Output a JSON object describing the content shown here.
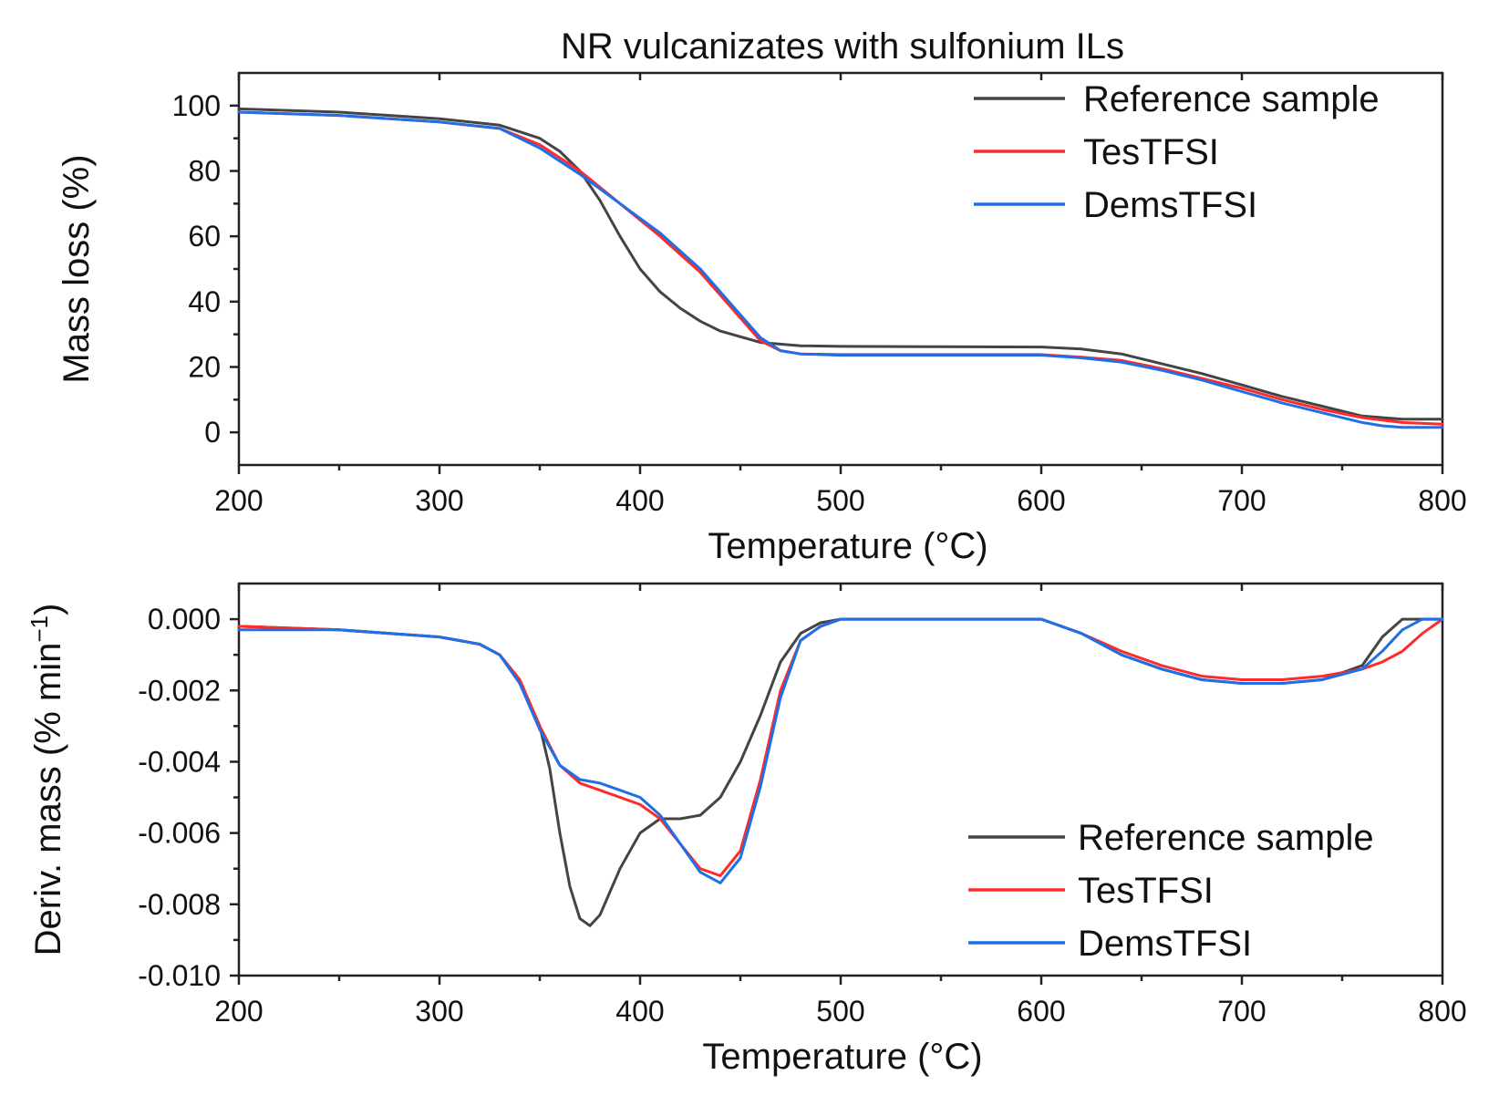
{
  "title": "NR vulcanizates with sulfonium ILs",
  "colors": {
    "reference": "#444444",
    "testfsi": "#ff2a2a",
    "demstfsi": "#1f6fe6"
  },
  "chart_data": [
    {
      "type": "line",
      "xlabel": "Temperature (°C)",
      "ylabel": "Mass loss (%)",
      "xlim": [
        200,
        800
      ],
      "ylim": [
        -10,
        110
      ],
      "xticks": [
        200,
        300,
        400,
        500,
        600,
        700,
        800
      ],
      "yticks": [
        0,
        20,
        40,
        60,
        80,
        100
      ],
      "ytick_labels": [
        "0",
        "20",
        "40",
        "60",
        "80",
        "100"
      ],
      "legend_position": "top-right",
      "series": [
        {
          "name": "Reference sample",
          "color": "#444444",
          "x": [
            200,
            250,
            300,
            330,
            350,
            360,
            370,
            380,
            390,
            400,
            410,
            420,
            430,
            440,
            460,
            480,
            500,
            550,
            600,
            620,
            640,
            660,
            680,
            700,
            720,
            740,
            760,
            780,
            800
          ],
          "y": [
            99,
            98,
            96,
            94,
            90,
            86,
            80,
            71,
            60,
            50,
            43,
            38,
            34,
            31,
            27.5,
            26.5,
            26.3,
            26.2,
            26.1,
            25.5,
            24,
            21,
            18,
            14.5,
            11,
            8,
            5,
            4,
            4
          ]
        },
        {
          "name": "TesTFSI",
          "color": "#ff2a2a",
          "x": [
            200,
            250,
            300,
            330,
            350,
            370,
            390,
            410,
            430,
            450,
            460,
            470,
            480,
            500,
            550,
            600,
            620,
            640,
            660,
            680,
            700,
            720,
            740,
            760,
            780,
            800
          ],
          "y": [
            98,
            97,
            95,
            93,
            88,
            80,
            70,
            60,
            49,
            35,
            28,
            25,
            24,
            23.8,
            23.8,
            23.8,
            23,
            22,
            19.5,
            16.5,
            13.5,
            10,
            7,
            4.5,
            3,
            2.5
          ]
        },
        {
          "name": "DemsTFSI",
          "color": "#1f6fe6",
          "x": [
            200,
            250,
            300,
            330,
            350,
            370,
            390,
            410,
            430,
            450,
            460,
            470,
            480,
            500,
            550,
            600,
            620,
            640,
            660,
            680,
            700,
            720,
            740,
            760,
            770,
            780,
            800
          ],
          "y": [
            98,
            97,
            95,
            93,
            87,
            79,
            70,
            61,
            50,
            36,
            29,
            25,
            24,
            23.6,
            23.6,
            23.6,
            22.8,
            21.5,
            19,
            16,
            12.5,
            9,
            6,
            3,
            2,
            1.5,
            1.5
          ]
        }
      ]
    },
    {
      "type": "line",
      "xlabel": "Temperature (°C)",
      "ylabel": "Deriv. mass (% min",
      "ylabel_superscript": "−1",
      "ylabel_close": ")",
      "xlim": [
        200,
        800
      ],
      "ylim": [
        -0.01,
        0.001
      ],
      "xticks": [
        200,
        300,
        400,
        500,
        600,
        700,
        800
      ],
      "yticks": [
        0,
        -0.002,
        -0.004,
        -0.006,
        -0.008,
        -0.01
      ],
      "ytick_labels": [
        "0.000",
        "-0.002",
        "-0.004",
        "-0.006",
        "-0.008",
        "-0.010"
      ],
      "legend_position": "bottom-right",
      "series": [
        {
          "name": "Reference sample",
          "color": "#444444",
          "x": [
            200,
            250,
            300,
            320,
            330,
            340,
            350,
            355,
            360,
            365,
            370,
            375,
            380,
            390,
            400,
            410,
            420,
            430,
            440,
            450,
            460,
            470,
            480,
            490,
            500,
            550,
            600,
            620,
            640,
            660,
            680,
            700,
            720,
            740,
            760,
            770,
            780,
            800
          ],
          "y": [
            -0.0002,
            -0.0003,
            -0.0005,
            -0.0007,
            -0.001,
            -0.0017,
            -0.003,
            -0.0042,
            -0.006,
            -0.0075,
            -0.0084,
            -0.0086,
            -0.0083,
            -0.007,
            -0.006,
            -0.0056,
            -0.0056,
            -0.0055,
            -0.005,
            -0.004,
            -0.0027,
            -0.0012,
            -0.0004,
            -0.0001,
            0,
            0,
            0,
            -0.0004,
            -0.001,
            -0.0014,
            -0.0017,
            -0.0018,
            -0.0018,
            -0.0017,
            -0.0013,
            -0.0005,
            0,
            0
          ]
        },
        {
          "name": "TesTFSI",
          "color": "#ff2a2a",
          "x": [
            200,
            250,
            300,
            320,
            330,
            340,
            350,
            360,
            370,
            380,
            390,
            400,
            410,
            420,
            430,
            440,
            450,
            460,
            470,
            480,
            490,
            500,
            550,
            600,
            620,
            640,
            660,
            680,
            700,
            720,
            740,
            760,
            770,
            780,
            790,
            800
          ],
          "y": [
            -0.0002,
            -0.0003,
            -0.0005,
            -0.0007,
            -0.001,
            -0.0017,
            -0.003,
            -0.0041,
            -0.0046,
            -0.0048,
            -0.005,
            -0.0052,
            -0.0056,
            -0.0063,
            -0.007,
            -0.0072,
            -0.0065,
            -0.0045,
            -0.002,
            -0.0006,
            -0.0002,
            0,
            0,
            0,
            -0.0004,
            -0.0009,
            -0.0013,
            -0.0016,
            -0.0017,
            -0.0017,
            -0.0016,
            -0.0014,
            -0.0012,
            -0.0009,
            -0.0004,
            0
          ]
        },
        {
          "name": "DemsTFSI",
          "color": "#1f6fe6",
          "x": [
            200,
            250,
            300,
            320,
            330,
            340,
            350,
            360,
            370,
            380,
            390,
            400,
            410,
            420,
            430,
            440,
            450,
            460,
            470,
            480,
            490,
            500,
            550,
            600,
            620,
            640,
            660,
            680,
            700,
            720,
            740,
            760,
            770,
            780,
            790,
            800
          ],
          "y": [
            -0.0003,
            -0.0003,
            -0.0005,
            -0.0007,
            -0.001,
            -0.0018,
            -0.0031,
            -0.0041,
            -0.0045,
            -0.0046,
            -0.0048,
            -0.005,
            -0.0055,
            -0.0063,
            -0.0071,
            -0.0074,
            -0.0067,
            -0.0047,
            -0.0022,
            -0.0006,
            -0.0002,
            0,
            0,
            0,
            -0.0004,
            -0.001,
            -0.0014,
            -0.0017,
            -0.0018,
            -0.0018,
            -0.0017,
            -0.0014,
            -0.0009,
            -0.0003,
            0,
            0
          ]
        }
      ]
    }
  ]
}
